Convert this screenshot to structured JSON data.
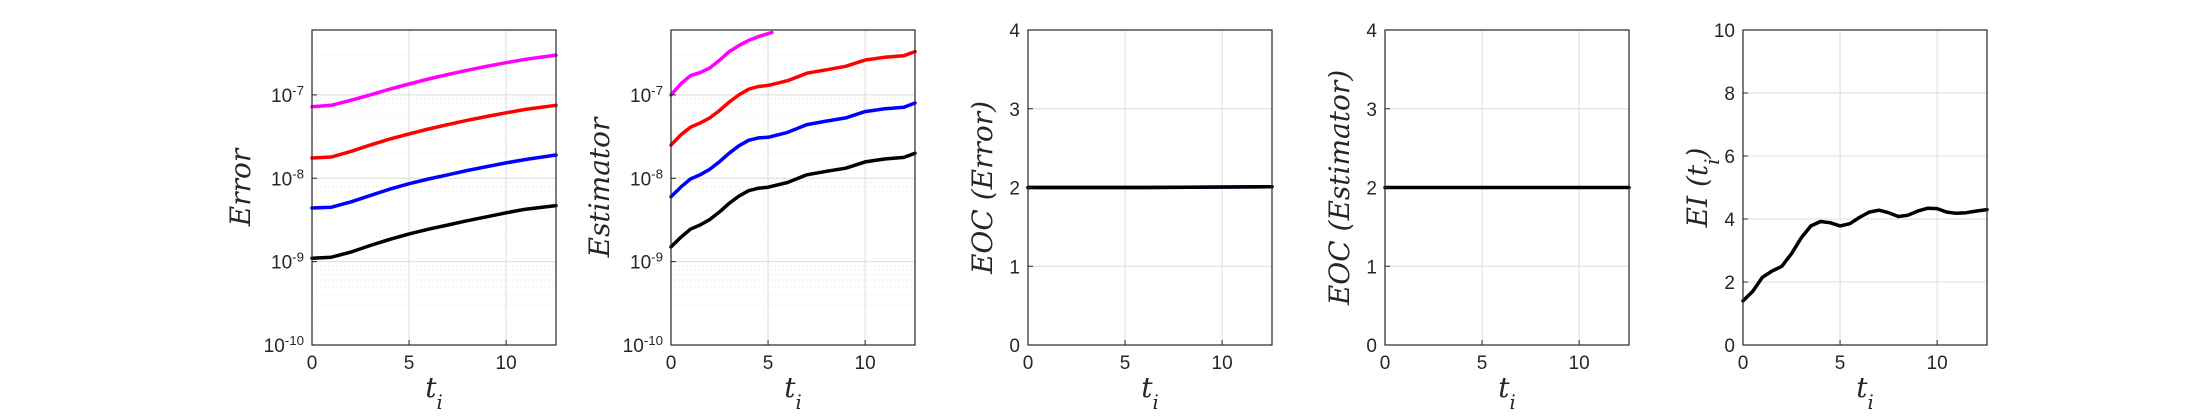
{
  "chart_data": [
    {
      "type": "line",
      "xlabel": "t_i",
      "ylabel": "Error",
      "yscale": "log",
      "xlim": [
        0,
        12.57
      ],
      "ylim": [
        1e-10,
        6e-07
      ],
      "xticks": [
        0,
        5,
        10
      ],
      "yticks": [
        1e-10,
        1e-09,
        1e-08,
        1e-07
      ],
      "ytick_labels": [
        "10^-10",
        "10^-9",
        "10^-8",
        "10^-7"
      ],
      "grid": true,
      "series": [
        {
          "color": "#ff00ff",
          "x": [
            0,
            1,
            2,
            3,
            4,
            5,
            6,
            7,
            8,
            9,
            10,
            11,
            12.57
          ],
          "y": [
            7.2e-08,
            7.5e-08,
            8.6e-08,
            1e-07,
            1.17e-07,
            1.35e-07,
            1.55e-07,
            1.76e-07,
            1.97e-07,
            2.2e-07,
            2.43e-07,
            2.67e-07,
            3e-07
          ]
        },
        {
          "color": "#ff0000",
          "x": [
            0,
            1,
            2,
            3,
            4,
            5,
            6,
            7,
            8,
            9,
            10,
            11,
            12.57
          ],
          "y": [
            1.75e-08,
            1.8e-08,
            2.1e-08,
            2.5e-08,
            2.95e-08,
            3.4e-08,
            3.9e-08,
            4.4e-08,
            4.95e-08,
            5.5e-08,
            6.1e-08,
            6.7e-08,
            7.5e-08
          ]
        },
        {
          "color": "#0000ff",
          "x": [
            0,
            1,
            2,
            3,
            4,
            5,
            6,
            7,
            8,
            9,
            10,
            11,
            12.57
          ],
          "y": [
            4.4e-09,
            4.5e-09,
            5.2e-09,
            6.2e-09,
            7.4e-09,
            8.6e-09,
            9.8e-09,
            1.1e-08,
            1.24e-08,
            1.38e-08,
            1.53e-08,
            1.68e-08,
            1.9e-08
          ]
        },
        {
          "color": "#000000",
          "x": [
            0,
            1,
            2,
            3,
            4,
            5,
            6,
            7,
            8,
            9,
            10,
            11,
            12.57
          ],
          "y": [
            1.1e-09,
            1.13e-09,
            1.3e-09,
            1.56e-09,
            1.85e-09,
            2.15e-09,
            2.45e-09,
            2.75e-09,
            3.1e-09,
            3.45e-09,
            3.85e-09,
            4.25e-09,
            4.7e-09
          ]
        }
      ]
    },
    {
      "type": "line",
      "xlabel": "t_i",
      "ylabel": "Estimator",
      "yscale": "log",
      "xlim": [
        0,
        12.57
      ],
      "ylim": [
        1e-10,
        6e-07
      ],
      "xticks": [
        0,
        5,
        10
      ],
      "yticks": [
        1e-10,
        1e-09,
        1e-08,
        1e-07
      ],
      "ytick_labels": [
        "10^-10",
        "10^-9",
        "10^-8",
        "10^-7"
      ],
      "grid": true,
      "series": [
        {
          "color": "#ff00ff",
          "x": [
            0,
            0.5,
            1,
            1.5,
            2,
            2.5,
            3,
            3.5,
            4,
            4.5,
            5.2
          ],
          "y": [
            1e-07,
            1.35e-07,
            1.7e-07,
            1.85e-07,
            2.1e-07,
            2.6e-07,
            3.3e-07,
            3.9e-07,
            4.5e-07,
            5e-07,
            5.6e-07
          ]
        },
        {
          "color": "#ff0000",
          "x": [
            0,
            0.5,
            1,
            1.5,
            2,
            2.5,
            3,
            3.5,
            4,
            4.5,
            5,
            6,
            7,
            8,
            9,
            10,
            11,
            12,
            12.57
          ],
          "y": [
            2.5e-08,
            3.3e-08,
            4.1e-08,
            4.6e-08,
            5.3e-08,
            6.5e-08,
            8.2e-08,
            1e-07,
            1.17e-07,
            1.26e-07,
            1.3e-07,
            1.48e-07,
            1.82e-07,
            2e-07,
            2.2e-07,
            2.62e-07,
            2.82e-07,
            2.95e-07,
            3.3e-07
          ]
        },
        {
          "color": "#0000ff",
          "x": [
            0,
            0.5,
            1,
            1.5,
            2,
            2.5,
            3,
            3.5,
            4,
            4.5,
            5,
            6,
            7,
            8,
            9,
            10,
            11,
            12,
            12.57
          ],
          "y": [
            6e-09,
            7.8e-09,
            9.8e-09,
            1.1e-08,
            1.28e-08,
            1.58e-08,
            2e-08,
            2.45e-08,
            2.85e-08,
            3.05e-08,
            3.1e-08,
            3.55e-08,
            4.4e-08,
            4.85e-08,
            5.3e-08,
            6.3e-08,
            6.8e-08,
            7.1e-08,
            8e-08
          ]
        },
        {
          "color": "#000000",
          "x": [
            0,
            0.5,
            1,
            1.5,
            2,
            2.5,
            3,
            3.5,
            4,
            4.5,
            5,
            6,
            7,
            8,
            9,
            10,
            11,
            12,
            12.57
          ],
          "y": [
            1.5e-09,
            1.95e-09,
            2.45e-09,
            2.75e-09,
            3.2e-09,
            3.95e-09,
            5e-09,
            6.1e-09,
            7.1e-09,
            7.6e-09,
            7.8e-09,
            8.9e-09,
            1.1e-08,
            1.21e-08,
            1.32e-08,
            1.57e-08,
            1.7e-08,
            1.78e-08,
            2e-08
          ]
        }
      ]
    },
    {
      "type": "line",
      "xlabel": "t_i",
      "ylabel": "EOC (Error)",
      "xlim": [
        0,
        12.57
      ],
      "ylim": [
        0,
        4
      ],
      "xticks": [
        0,
        5,
        10
      ],
      "yticks": [
        0,
        1,
        2,
        3,
        4
      ],
      "ytick_labels": [
        "0",
        "1",
        "2",
        "3",
        "4"
      ],
      "grid": true,
      "series": [
        {
          "color": "#0000ff",
          "x": [
            0,
            6,
            12.57
          ],
          "y": [
            2.0,
            2.0,
            2.01
          ]
        },
        {
          "color": "#000000",
          "x": [
            0,
            6,
            12.57
          ],
          "y": [
            2.0,
            2.0,
            2.01
          ]
        }
      ]
    },
    {
      "type": "line",
      "xlabel": "t_i",
      "ylabel": "EOC (Estimator)",
      "xlim": [
        0,
        12.57
      ],
      "ylim": [
        0,
        4
      ],
      "xticks": [
        0,
        5,
        10
      ],
      "yticks": [
        0,
        1,
        2,
        3,
        4
      ],
      "ytick_labels": [
        "0",
        "1",
        "2",
        "3",
        "4"
      ],
      "grid": true,
      "series": [
        {
          "color": "#000000",
          "x": [
            0,
            12.57
          ],
          "y": [
            2.0,
            2.0
          ]
        }
      ]
    },
    {
      "type": "line",
      "xlabel": "t_i",
      "ylabel": "EI (t_i)",
      "xlim": [
        0,
        12.57
      ],
      "ylim": [
        0,
        10
      ],
      "xticks": [
        0,
        5,
        10
      ],
      "yticks": [
        0,
        2,
        4,
        6,
        8,
        10
      ],
      "ytick_labels": [
        "0",
        "2",
        "4",
        "6",
        "8",
        "10"
      ],
      "grid": true,
      "series": [
        {
          "color": "#000000",
          "x": [
            0,
            0.5,
            1,
            1.5,
            2,
            2.5,
            3,
            3.5,
            4,
            4.5,
            5,
            5.5,
            6,
            6.5,
            7,
            7.5,
            8,
            8.5,
            9,
            9.5,
            10,
            10.5,
            11,
            11.5,
            12,
            12.57
          ],
          "y": [
            1.4,
            1.7,
            2.15,
            2.35,
            2.5,
            2.9,
            3.4,
            3.78,
            3.92,
            3.88,
            3.78,
            3.85,
            4.05,
            4.22,
            4.28,
            4.2,
            4.08,
            4.12,
            4.25,
            4.34,
            4.33,
            4.22,
            4.18,
            4.2,
            4.25,
            4.3
          ]
        }
      ]
    }
  ]
}
